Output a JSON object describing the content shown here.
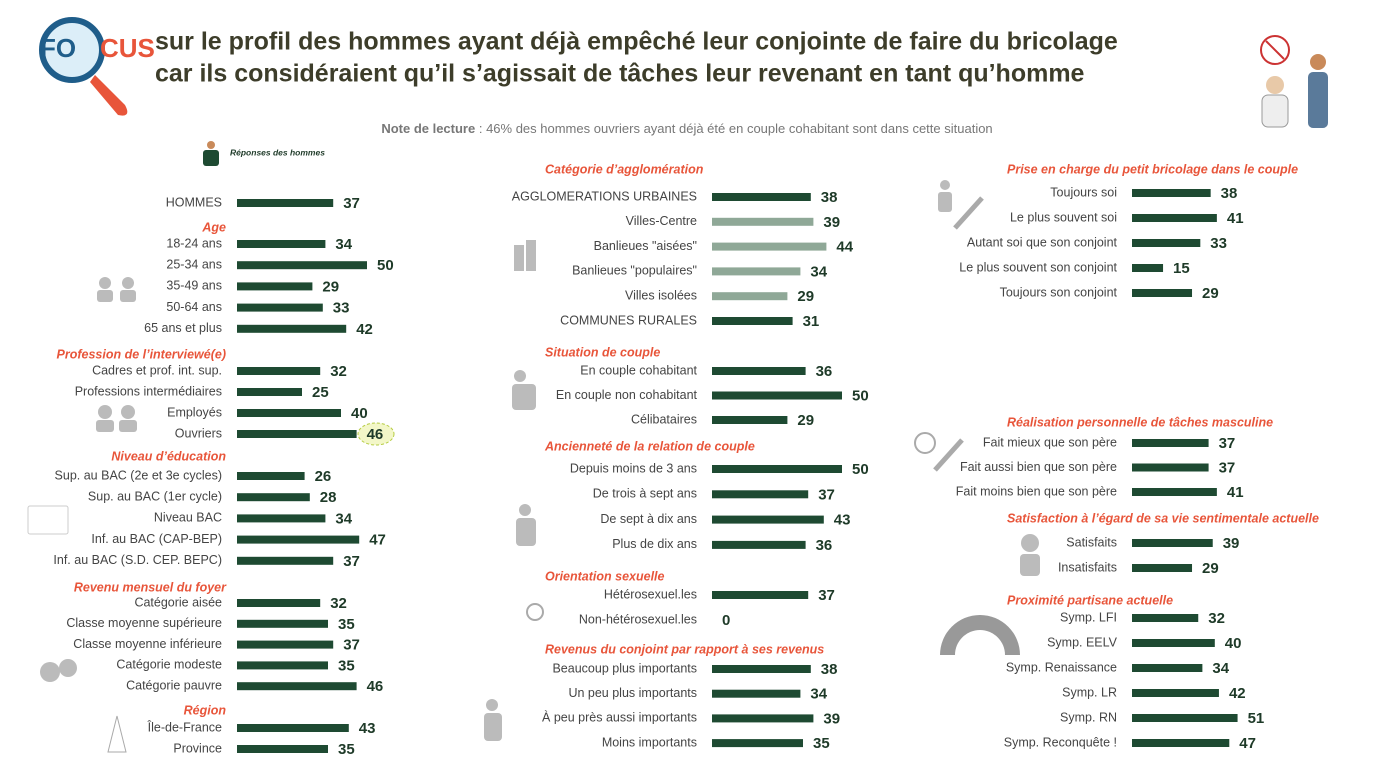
{
  "header": {
    "logo": [
      "FO",
      "CUS"
    ],
    "title_lines": [
      "sur le profil des hommes ayant déjà empêché leur conjointe de faire du bricolage",
      "car ils considéraient qu’il s’agissait de tâches leur revenant en tant qu’homme"
    ]
  },
  "note": {
    "label": "Note de lecture",
    "text": " : 46% des hommes ouvriers ayant déjà été en couple cohabitant sont dans cette situation"
  },
  "legend": "Réponses des hommes",
  "chart_data": [
    {
      "type": "bar",
      "categories": [
        "HOMMES"
      ],
      "values": [
        37
      ],
      "color": "#1e4a32"
    },
    {
      "type": "bar",
      "title": "Age",
      "categories": [
        "18-24 ans",
        "25-34 ans",
        "35-49 ans",
        "50-64 ans",
        "65 ans et plus"
      ],
      "values": [
        34,
        50,
        29,
        33,
        42
      ],
      "color": "#1e4a32"
    },
    {
      "type": "bar",
      "title": "Profession de l’interviewé(e)",
      "categories": [
        "Cadres et prof. int. sup.",
        "Professions intermédiaires",
        "Employés",
        "Ouvriers"
      ],
      "values": [
        32,
        25,
        40,
        46
      ],
      "color": "#1e4a32"
    },
    {
      "type": "bar",
      "title": "Niveau d’éducation",
      "categories": [
        "Sup. au BAC (2e et 3e cycles)",
        "Sup. au BAC (1er cycle)",
        "Niveau BAC",
        "Inf. au BAC (CAP-BEP)",
        "Inf. au BAC (S.D. CEP. BEPC)"
      ],
      "values": [
        26,
        28,
        34,
        47,
        37
      ],
      "color": "#1e4a32"
    },
    {
      "type": "bar",
      "title": "Revenu mensuel du foyer",
      "categories": [
        "Catégorie aisée",
        "Classe moyenne supérieure",
        "Classe moyenne inférieure",
        "Catégorie modeste",
        "Catégorie pauvre"
      ],
      "values": [
        32,
        35,
        37,
        35,
        46
      ],
      "color": "#1e4a32"
    },
    {
      "type": "bar",
      "title": "Région",
      "categories": [
        "Île-de-France",
        "Province"
      ],
      "values": [
        43,
        35
      ],
      "color": "#1e4a32"
    },
    {
      "type": "bar",
      "title": "Catégorie d’agglomération",
      "categories": [
        "AGGLOMERATIONS URBAINES",
        "Villes-Centre",
        "Banlieues \"aisées\"",
        "Banlieues \"populaires\"",
        "Villes isolées",
        "COMMUNES RURALES"
      ],
      "values": [
        38,
        39,
        44,
        34,
        29,
        31
      ],
      "colors": [
        "#1e4a32",
        "#8fa897",
        "#8fa897",
        "#8fa897",
        "#8fa897",
        "#1e4a32"
      ]
    },
    {
      "type": "bar",
      "title": "Situation de couple",
      "categories": [
        "En couple cohabitant",
        "En couple non cohabitant",
        "Célibataires"
      ],
      "values": [
        36,
        50,
        29
      ],
      "color": "#1e4a32"
    },
    {
      "type": "bar",
      "title": "Ancienneté de la relation de couple",
      "categories": [
        "Depuis moins de 3 ans",
        "De trois à sept ans",
        "De sept à dix ans",
        "Plus de dix ans"
      ],
      "values": [
        50,
        37,
        43,
        36
      ],
      "color": "#1e4a32"
    },
    {
      "type": "bar",
      "title": "Orientation sexuelle",
      "categories": [
        "Hétérosexuel.les",
        "Non-hétérosexuel.les"
      ],
      "values": [
        37,
        0
      ],
      "color": "#1e4a32"
    },
    {
      "type": "bar",
      "title": "Revenus du conjoint par rapport à ses revenus",
      "categories": [
        "Beaucoup plus importants",
        "Un peu plus importants",
        "À peu près aussi importants",
        "Moins importants"
      ],
      "values": [
        38,
        34,
        39,
        35
      ],
      "color": "#1e4a32"
    },
    {
      "type": "bar",
      "title": "Prise en charge du petit bricolage dans le couple",
      "categories": [
        "Toujours soi",
        "Le plus souvent soi",
        "Autant soi que son conjoint",
        "Le plus souvent son conjoint",
        "Toujours son conjoint"
      ],
      "values": [
        38,
        41,
        33,
        15,
        29
      ],
      "color": "#1e4a32"
    },
    {
      "type": "bar",
      "title": "Réalisation personnelle de tâches masculine",
      "categories": [
        "Fait mieux que son père",
        "Fait aussi bien que son père",
        "Fait moins bien que son père"
      ],
      "values": [
        37,
        37,
        41
      ],
      "color": "#1e4a32"
    },
    {
      "type": "bar",
      "title": "Satisfaction à l’égard de sa vie sentimentale actuelle",
      "categories": [
        "Satisfaits",
        "Insatisfaits"
      ],
      "values": [
        39,
        29
      ],
      "color": "#1e4a32"
    },
    {
      "type": "bar",
      "title": "Proximité partisane actuelle",
      "categories": [
        "Symp. LFI",
        "Symp. EELV",
        "Symp. Renaissance",
        "Symp. LR",
        "Symp. RN",
        "Symp. Reconquête !"
      ],
      "values": [
        32,
        40,
        34,
        42,
        51,
        47
      ],
      "color": "#1e4a32"
    }
  ]
}
